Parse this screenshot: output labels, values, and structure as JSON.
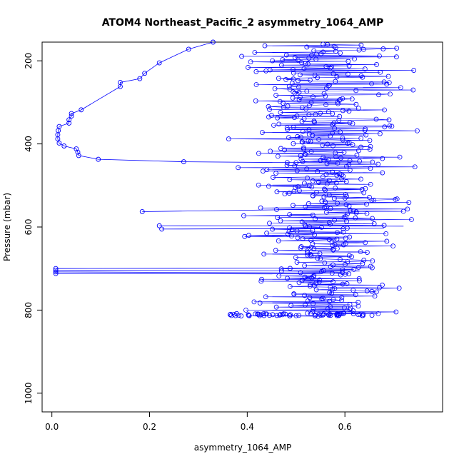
{
  "chart_data": {
    "type": "scatter",
    "title": "ATOM4 Northeast_Pacific_2 asymmetry_1064_AMP",
    "xlabel": "asymmetry_1064_AMP",
    "ylabel": "Pressure (mbar)",
    "xlim": [
      -0.02,
      0.8
    ],
    "ylim": [
      1045,
      155
    ],
    "y_axis_reversed": true,
    "xticks": [
      0.0,
      0.2,
      0.4,
      0.6
    ],
    "xtick_labels": [
      "0.0",
      "0.2",
      "0.4",
      "0.6"
    ],
    "yticks": [
      200,
      400,
      600,
      800,
      1000
    ],
    "ytick_labels": [
      "200",
      "400",
      "600",
      "800",
      "1000"
    ],
    "marker": "open-circle",
    "connected_by_line": true,
    "grid": false,
    "legend": "none",
    "color": "#0000ff",
    "series": [
      {
        "points": [
          {
            "x": 0.33,
            "y": 155
          },
          {
            "x": 0.28,
            "y": 172
          },
          {
            "x": 0.22,
            "y": 205
          },
          {
            "x": 0.19,
            "y": 230
          },
          {
            "x": 0.18,
            "y": 243
          },
          {
            "x": 0.14,
            "y": 252
          },
          {
            "x": 0.14,
            "y": 262
          },
          {
            "x": 0.06,
            "y": 318
          },
          {
            "x": 0.04,
            "y": 327
          },
          {
            "x": 0.04,
            "y": 333
          },
          {
            "x": 0.035,
            "y": 342
          },
          {
            "x": 0.035,
            "y": 350
          },
          {
            "x": 0.015,
            "y": 358
          },
          {
            "x": 0.013,
            "y": 368
          },
          {
            "x": 0.012,
            "y": 378
          },
          {
            "x": 0.012,
            "y": 388
          },
          {
            "x": 0.015,
            "y": 398
          },
          {
            "x": 0.025,
            "y": 405
          },
          {
            "x": 0.05,
            "y": 412
          },
          {
            "x": 0.053,
            "y": 420
          },
          {
            "x": 0.055,
            "y": 428
          },
          {
            "x": 0.095,
            "y": 437
          },
          {
            "x": 0.27,
            "y": 443
          },
          {
            "x": 0.5,
            "y": 445
          },
          {
            "x": 0.55,
            "y": 440
          }
        ]
      }
    ]
  }
}
